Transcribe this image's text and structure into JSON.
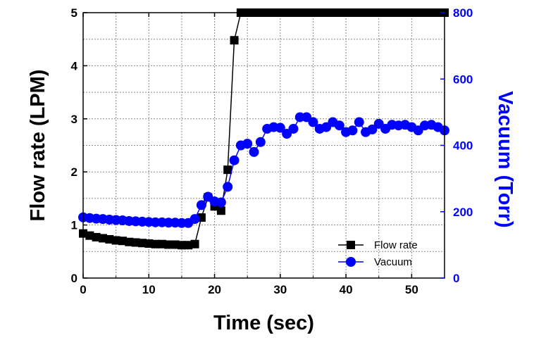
{
  "chart_data": {
    "type": "line",
    "xlabel": "Time (sec)",
    "ylabel_left": "Flow rate (LPM)",
    "ylabel_right": "Vacuum (Torr)",
    "xlim": [
      0,
      55
    ],
    "ylim_left": [
      0,
      5
    ],
    "ylim_right": [
      0,
      800
    ],
    "x_ticks": [
      0,
      10,
      20,
      30,
      40,
      50
    ],
    "y_ticks_left": [
      0,
      1,
      2,
      3,
      4,
      5
    ],
    "y_ticks_right": [
      0,
      200,
      400,
      600,
      800
    ],
    "grid": true,
    "legend_position": "bottom-right",
    "colors": {
      "flow": "#000000",
      "vacuum": "#0000ff"
    },
    "series": [
      {
        "name": "Flow rate",
        "axis": "left",
        "marker": "square",
        "x": [
          0,
          1,
          2,
          3,
          4,
          5,
          6,
          7,
          8,
          9,
          10,
          11,
          12,
          13,
          14,
          15,
          16,
          17,
          18,
          19,
          20,
          21,
          22,
          23,
          24,
          25,
          26,
          27,
          28,
          29,
          30,
          31,
          32,
          33,
          34,
          35,
          36,
          37,
          38,
          39,
          40,
          41,
          42,
          43,
          44,
          45,
          46,
          47,
          48,
          49,
          50,
          51,
          52,
          53,
          54,
          55
        ],
        "values": [
          0.84,
          0.8,
          0.77,
          0.75,
          0.73,
          0.71,
          0.7,
          0.68,
          0.67,
          0.66,
          0.65,
          0.64,
          0.64,
          0.63,
          0.63,
          0.62,
          0.62,
          0.64,
          1.14,
          1.52,
          1.35,
          1.27,
          2.04,
          4.48,
          5.0,
          5.0,
          5.0,
          5.0,
          5.0,
          5.0,
          5.0,
          5.0,
          5.0,
          5.0,
          5.0,
          5.0,
          5.0,
          5.0,
          5.0,
          5.0,
          5.0,
          5.0,
          5.0,
          5.0,
          5.0,
          5.0,
          5.0,
          5.0,
          5.0,
          5.0,
          5.0,
          5.0,
          5.0,
          5.0,
          5.0,
          5.0
        ]
      },
      {
        "name": "Vacuum",
        "axis": "right",
        "marker": "circle",
        "x": [
          0,
          1,
          2,
          3,
          4,
          5,
          6,
          7,
          8,
          9,
          10,
          11,
          12,
          13,
          14,
          15,
          16,
          17,
          18,
          19,
          20,
          21,
          22,
          23,
          24,
          25,
          26,
          27,
          28,
          29,
          30,
          31,
          32,
          33,
          34,
          35,
          36,
          37,
          38,
          39,
          40,
          41,
          42,
          43,
          44,
          45,
          46,
          47,
          48,
          49,
          50,
          51,
          52,
          53,
          54,
          55
        ],
        "values": [
          183,
          181,
          179,
          178,
          176,
          175,
          174,
          172,
          171,
          170,
          169,
          168,
          168,
          167,
          167,
          166,
          166,
          178,
          220,
          245,
          231,
          228,
          275,
          355,
          400,
          405,
          380,
          410,
          450,
          455,
          453,
          435,
          450,
          485,
          485,
          470,
          450,
          455,
          470,
          460,
          440,
          445,
          470,
          440,
          448,
          465,
          450,
          462,
          460,
          462,
          455,
          445,
          460,
          462,
          455,
          445
        ]
      }
    ]
  }
}
